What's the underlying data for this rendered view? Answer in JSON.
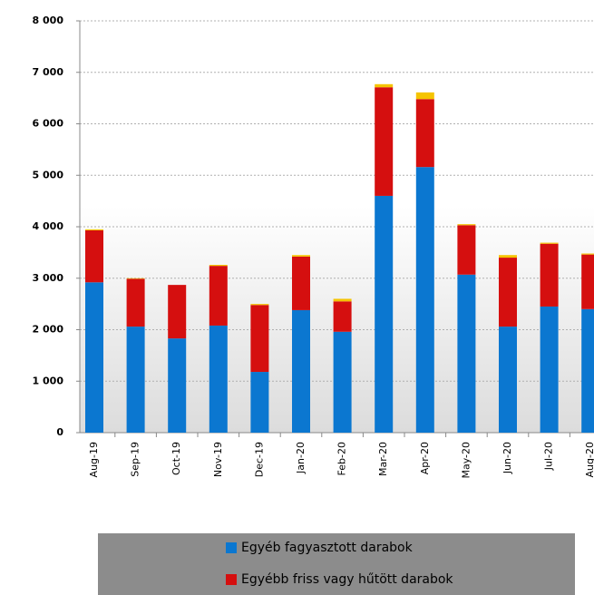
{
  "chart_data": {
    "type": "bar",
    "stacked": true,
    "categories": [
      "Aug-19",
      "Sep-19",
      "Oct-19",
      "Nov-19",
      "Dec-19",
      "Jan-20",
      "Feb-20",
      "Mar-20",
      "Apr-20",
      "May-20",
      "Jun-20",
      "Jul-20",
      "Aug-20"
    ],
    "series": [
      {
        "name": "Egyéb fagyasztott darabok",
        "color": "#0b77d0",
        "values": [
          2920,
          2060,
          1830,
          2080,
          1180,
          2380,
          1960,
          4600,
          5160,
          3070,
          2060,
          2450,
          2400
        ]
      },
      {
        "name": "Egyébb friss vagy hűtött darabok",
        "color": "#d50f0f",
        "values": [
          1010,
          930,
          1040,
          1160,
          1300,
          1040,
          590,
          2110,
          1320,
          960,
          1340,
          1220,
          1060
        ]
      },
      {
        "color": "#f5c400",
        "values": [
          20,
          10,
          0,
          20,
          20,
          30,
          50,
          60,
          130,
          20,
          50,
          20,
          20
        ]
      }
    ],
    "ylim": [
      0,
      8000
    ],
    "yticks": [
      0,
      {
        "value": 1000,
        "label": "1 000"
      },
      {
        "value": 2000,
        "label": "2 000"
      },
      {
        "value": 3000,
        "label": "3 000"
      },
      {
        "value": 4000,
        "label": "4 000"
      },
      {
        "value": 5000,
        "label": "5 000"
      },
      {
        "value": 6000,
        "label": "6 000"
      },
      {
        "value": 7000,
        "label": "7 000"
      },
      {
        "value": 8000,
        "label": "8 000"
      }
    ],
    "grid": true
  }
}
